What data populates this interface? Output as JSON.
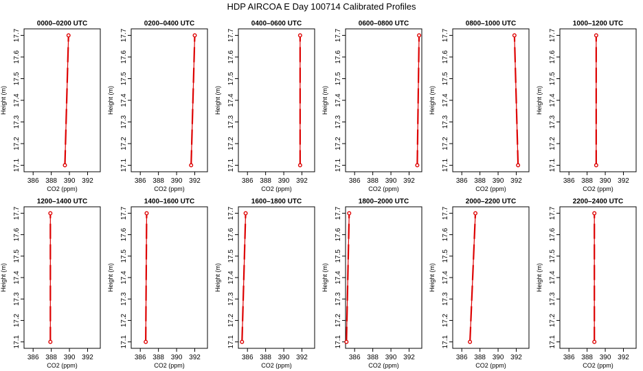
{
  "title": "HDP AIRCOA E  Day 100714  Calibrated Profiles",
  "colors": {
    "profile": "#dd0000",
    "frame": "#000000"
  },
  "chart_data": {
    "type": "line",
    "layout": "2x6 small multiples",
    "xlabel": "CO2 (ppm)",
    "ylabel": "Height (m)",
    "xlim": [
      385.0,
      393.4
    ],
    "ylim": [
      17.07,
      17.73
    ],
    "xticks": [
      386,
      388,
      390,
      392
    ],
    "yticks": [
      17.1,
      17.2,
      17.3,
      17.4,
      17.5,
      17.6,
      17.7
    ],
    "xtick_labels": [
      "386",
      "388",
      "390",
      "392"
    ],
    "ytick_labels": [
      "17.1",
      "17.2",
      "17.3",
      "17.4",
      "17.5",
      "17.6",
      "17.7"
    ],
    "panels": [
      {
        "title": "0000–0200 UTC",
        "points": [
          {
            "x": 389.5,
            "y": 17.1
          },
          {
            "x": 389.9,
            "y": 17.7
          }
        ]
      },
      {
        "title": "0200–0400 UTC",
        "points": [
          {
            "x": 391.6,
            "y": 17.1
          },
          {
            "x": 392.0,
            "y": 17.7
          }
        ]
      },
      {
        "title": "0400–0600 UTC",
        "points": [
          {
            "x": 391.8,
            "y": 17.1
          },
          {
            "x": 391.8,
            "y": 17.7
          }
        ]
      },
      {
        "title": "0600–0800 UTC",
        "points": [
          {
            "x": 392.9,
            "y": 17.1
          },
          {
            "x": 393.1,
            "y": 17.7
          }
        ]
      },
      {
        "title": "0800–1000 UTC",
        "points": [
          {
            "x": 392.2,
            "y": 17.1
          },
          {
            "x": 391.8,
            "y": 17.7
          }
        ]
      },
      {
        "title": "1000–1200 UTC",
        "points": [
          {
            "x": 389.0,
            "y": 17.1
          },
          {
            "x": 389.0,
            "y": 17.7
          }
        ]
      },
      {
        "title": "1200–1400 UTC",
        "points": [
          {
            "x": 387.9,
            "y": 17.1
          },
          {
            "x": 387.9,
            "y": 17.7
          }
        ]
      },
      {
        "title": "1400–1600 UTC",
        "points": [
          {
            "x": 386.6,
            "y": 17.1
          },
          {
            "x": 386.7,
            "y": 17.7
          }
        ]
      },
      {
        "title": "1600–1800 UTC",
        "points": [
          {
            "x": 385.4,
            "y": 17.1
          },
          {
            "x": 385.8,
            "y": 17.7
          }
        ]
      },
      {
        "title": "1800–2000 UTC",
        "points": [
          {
            "x": 385.1,
            "y": 17.1
          },
          {
            "x": 385.4,
            "y": 17.7
          }
        ]
      },
      {
        "title": "2000–2200 UTC",
        "points": [
          {
            "x": 386.9,
            "y": 17.1
          },
          {
            "x": 387.5,
            "y": 17.7
          }
        ]
      },
      {
        "title": "2200–2400 UTC",
        "points": [
          {
            "x": 388.8,
            "y": 17.1
          },
          {
            "x": 388.8,
            "y": 17.7
          }
        ]
      }
    ]
  }
}
